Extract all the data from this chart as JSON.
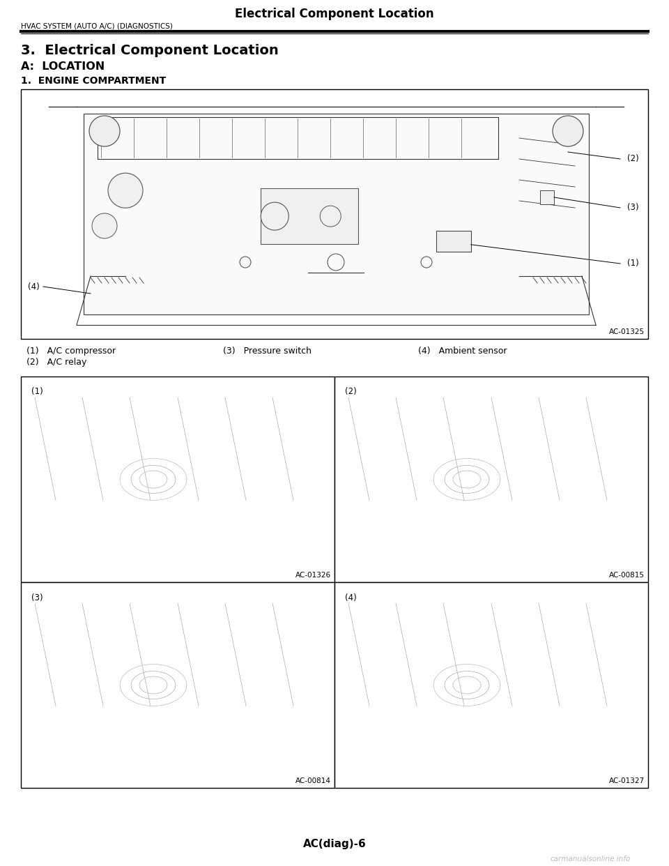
{
  "page_title": "Electrical Component Location",
  "subtitle": "HVAC SYSTEM (AUTO A/C) (DIAGNOSTICS)",
  "section_heading": "3.  Electrical Component Location",
  "sub_heading_a": "A:  LOCATION",
  "sub_heading_1": "1.  ENGINE COMPARTMENT",
  "caption_code_top": "AC-01325",
  "caption_code_tl": "AC-01326",
  "caption_code_tr": "AC-00815",
  "caption_code_bl": "AC-00814",
  "caption_code_br": "AC-01327",
  "legend_1": "(1)   A/C compressor",
  "legend_2": "(2)   A/C relay",
  "legend_3": "(3)   Pressure switch",
  "legend_4": "(4)   Ambient sensor",
  "page_number": "AC(diag)-6",
  "watermark": "carmanualsonline.info",
  "bg_color": "#ffffff",
  "line_color": "#000000",
  "diagram_bg": "#ffffff",
  "border_lw": 1.0
}
